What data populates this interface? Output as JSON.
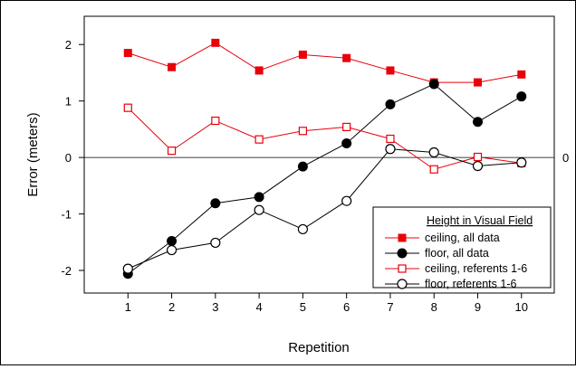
{
  "chart_data": {
    "type": "line",
    "title": "",
    "xlabel": "Repetition",
    "ylabel": "Error (meters)",
    "x": [
      1,
      2,
      3,
      4,
      5,
      6,
      7,
      8,
      9,
      10
    ],
    "xlim": [
      0,
      10.75
    ],
    "ylim": [
      -2.4,
      2.5
    ],
    "x_ticks": [
      "1",
      "2",
      "3",
      "4",
      "5",
      "6",
      "7",
      "8",
      "9",
      "10"
    ],
    "y_ticks": [
      "2",
      "1",
      "0",
      "-1",
      "-2"
    ],
    "reference_line": {
      "y": 0,
      "label": "0"
    },
    "grid": false,
    "legend": {
      "title": "Height in Visual Field",
      "placement": "bottom-right"
    },
    "series": [
      {
        "name": "ceiling, all data",
        "color": "#e8000b",
        "marker": "filled-square",
        "values": [
          1.85,
          1.6,
          2.03,
          1.54,
          1.82,
          1.76,
          1.54,
          1.33,
          1.33,
          1.47
        ]
      },
      {
        "name": "floor, all data",
        "color": "#000000",
        "marker": "filled-circle",
        "values": [
          -2.06,
          -1.48,
          -0.81,
          -0.7,
          -0.16,
          0.25,
          0.94,
          1.3,
          0.63,
          1.08
        ]
      },
      {
        "name": "ceiling, referents 1-6",
        "color": "#e8000b",
        "marker": "open-square",
        "values": [
          0.88,
          0.12,
          0.65,
          0.32,
          0.47,
          0.54,
          0.33,
          -0.21,
          0.01,
          -0.1
        ]
      },
      {
        "name": "floor, referents 1-6",
        "color": "#000000",
        "marker": "open-circle",
        "values": [
          -1.97,
          -1.64,
          -1.51,
          -0.93,
          -1.27,
          -0.77,
          0.15,
          0.09,
          -0.15,
          -0.09
        ]
      }
    ]
  }
}
